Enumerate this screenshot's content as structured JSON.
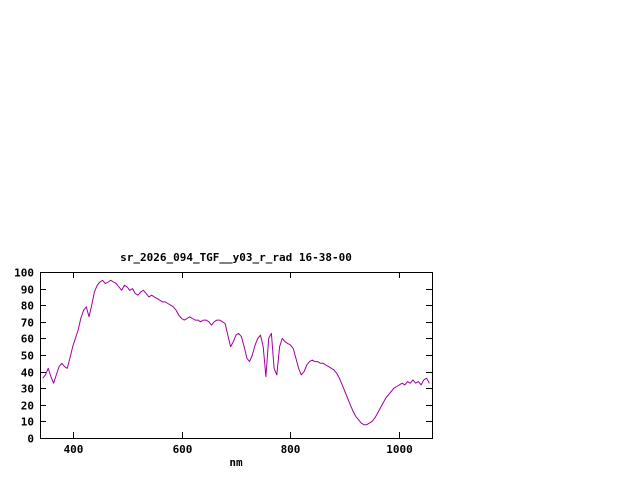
{
  "window": {
    "background": "#ffffff"
  },
  "chart_data": {
    "type": "line",
    "title": "sr_2026_094_TGF__y03_r_rad 16-38-00",
    "xlabel": "nm",
    "ylabel": "",
    "xlim": [
      340,
      1060
    ],
    "ylim": [
      0,
      100
    ],
    "xticks": [
      400,
      600,
      800,
      1000
    ],
    "yticks": [
      0,
      10,
      20,
      30,
      40,
      50,
      60,
      70,
      80,
      90,
      100
    ],
    "grid": false,
    "legend": "none",
    "line_color": "#a000a0",
    "axis_color": "#000000",
    "series": [
      {
        "name": "sr_2026_094_TGF__y03_r_rad",
        "x": [
          345,
          350,
          355,
          360,
          365,
          370,
          375,
          380,
          385,
          390,
          395,
          400,
          405,
          410,
          415,
          420,
          425,
          430,
          435,
          440,
          445,
          450,
          455,
          460,
          465,
          470,
          475,
          480,
          485,
          490,
          495,
          500,
          505,
          510,
          515,
          520,
          525,
          530,
          535,
          540,
          545,
          550,
          555,
          560,
          565,
          570,
          575,
          580,
          585,
          590,
          595,
          600,
          605,
          610,
          615,
          620,
          625,
          630,
          635,
          640,
          645,
          650,
          655,
          660,
          665,
          670,
          675,
          680,
          685,
          690,
          695,
          700,
          705,
          710,
          715,
          720,
          725,
          730,
          735,
          740,
          745,
          750,
          755,
          760,
          765,
          770,
          775,
          780,
          785,
          790,
          795,
          800,
          805,
          810,
          815,
          820,
          825,
          830,
          835,
          840,
          845,
          850,
          855,
          860,
          865,
          870,
          875,
          880,
          885,
          890,
          895,
          900,
          905,
          910,
          915,
          920,
          925,
          930,
          935,
          940,
          945,
          950,
          955,
          960,
          965,
          970,
          975,
          980,
          985,
          990,
          995,
          1000,
          1005,
          1010,
          1015,
          1020,
          1025,
          1030,
          1035,
          1040,
          1045,
          1050,
          1055
        ],
        "y": [
          36,
          38,
          42,
          37,
          33,
          38,
          43,
          45,
          43,
          42,
          48,
          55,
          60,
          65,
          72,
          77,
          79,
          73,
          80,
          88,
          92,
          94,
          95,
          93,
          94,
          95,
          94,
          93,
          91,
          89,
          92,
          91,
          89,
          90,
          87,
          86,
          88,
          89,
          87,
          85,
          86,
          85,
          84,
          83,
          82,
          82,
          81,
          80,
          79,
          77,
          74,
          72,
          71,
          72,
          73,
          72,
          71,
          71,
          70,
          71,
          71,
          70,
          68,
          70,
          71,
          71,
          70,
          69,
          62,
          55,
          58,
          62,
          63,
          61,
          55,
          48,
          46,
          50,
          56,
          60,
          62,
          55,
          37,
          60,
          63,
          42,
          38,
          55,
          60,
          58,
          57,
          56,
          54,
          48,
          42,
          38,
          40,
          44,
          46,
          47,
          46,
          46,
          45,
          45,
          44,
          43,
          42,
          41,
          39,
          36,
          32,
          28,
          24,
          20,
          16,
          13,
          11,
          9,
          8,
          8,
          9,
          10,
          12,
          15,
          18,
          21,
          24,
          26,
          28,
          30,
          31,
          32,
          33,
          32,
          34,
          33,
          35,
          33,
          34,
          32,
          35,
          36,
          33
        ]
      }
    ]
  }
}
